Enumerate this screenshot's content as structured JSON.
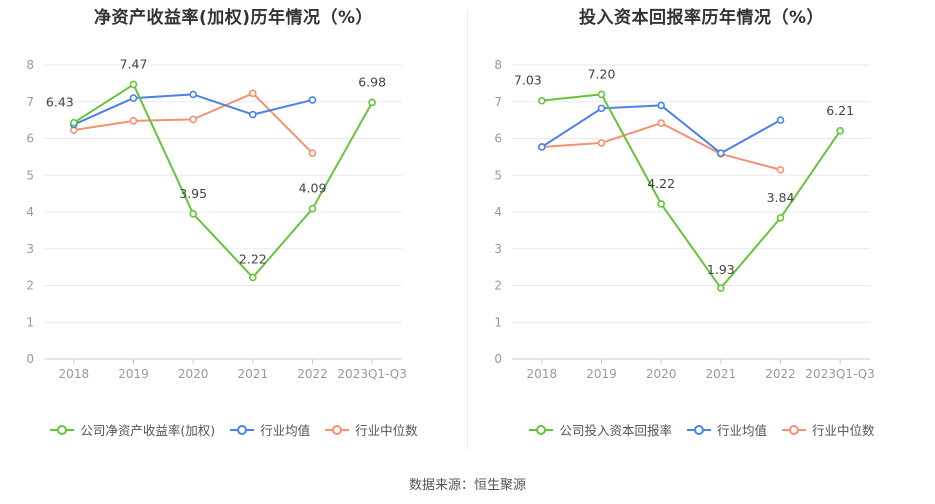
{
  "source_label": "数据来源：恒生聚源",
  "colors": {
    "company": "#66c43a",
    "avg": "#4c82e8",
    "median": "#f59070",
    "grid": "#e9e9ee",
    "axis": "#999999"
  },
  "charts": [
    {
      "title": "净资产收益率(加权)历年情况（%）",
      "legend": [
        "公司净资产收益率(加权)",
        "行业均值",
        "行业中位数"
      ]
    },
    {
      "title": "投入资本回报率历年情况（%）",
      "legend": [
        "公司投入资本回报率",
        "行业均值",
        "行业中位数"
      ]
    }
  ],
  "chart_data": [
    {
      "type": "line",
      "title": "净资产收益率(加权)历年情况（%）",
      "categories": [
        "2018",
        "2019",
        "2020",
        "2021",
        "2022",
        "2023Q1-Q3"
      ],
      "ylim": [
        0,
        8
      ],
      "yticks": [
        0,
        1,
        2,
        3,
        4,
        5,
        6,
        7,
        8
      ],
      "grid": true,
      "legend_position": "bottom",
      "series": [
        {
          "name": "公司净资产收益率(加权)",
          "values": [
            6.43,
            7.47,
            3.95,
            2.22,
            4.09,
            6.98
          ],
          "labels": [
            "6.43",
            "7.47",
            "3.95",
            "2.22",
            "4.09",
            "6.98"
          ]
        },
        {
          "name": "行业均值",
          "values": [
            6.38,
            7.1,
            7.2,
            6.65,
            7.05,
            null
          ]
        },
        {
          "name": "行业中位数",
          "values": [
            6.23,
            6.48,
            6.52,
            7.23,
            5.6,
            null
          ]
        }
      ]
    },
    {
      "type": "line",
      "title": "投入资本回报率历年情况（%）",
      "categories": [
        "2018",
        "2019",
        "2020",
        "2021",
        "2022",
        "2023Q1-Q3"
      ],
      "ylim": [
        0,
        8
      ],
      "yticks": [
        0,
        1,
        2,
        3,
        4,
        5,
        6,
        7,
        8
      ],
      "grid": true,
      "legend_position": "bottom",
      "series": [
        {
          "name": "公司投入资本回报率",
          "values": [
            7.03,
            7.2,
            4.22,
            1.93,
            3.84,
            6.21
          ],
          "labels": [
            "7.03",
            "7.20",
            "4.22",
            "1.93",
            "3.84",
            "6.21"
          ]
        },
        {
          "name": "行业均值",
          "values": [
            5.77,
            6.82,
            6.9,
            5.6,
            6.5,
            null
          ]
        },
        {
          "name": "行业中位数",
          "values": [
            5.77,
            5.88,
            6.42,
            5.58,
            5.15,
            null
          ]
        }
      ]
    }
  ]
}
